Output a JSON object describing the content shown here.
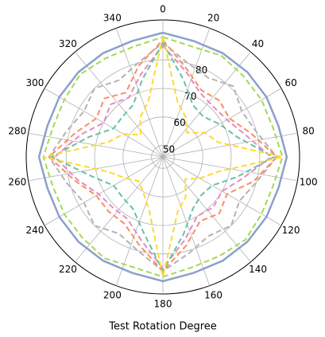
{
  "chart_data": {
    "type": "polar-line",
    "xlabel": "Test Rotation Degree",
    "x": [
      0,
      15,
      30,
      45,
      60,
      75,
      90,
      105,
      120,
      135,
      150,
      165,
      180,
      195,
      210,
      225,
      240,
      255,
      270,
      285,
      300,
      315,
      330,
      345
    ],
    "xlim": [
      0,
      360
    ],
    "xticks": [
      0,
      20,
      40,
      60,
      80,
      100,
      120,
      140,
      160,
      180,
      200,
      220,
      240,
      260,
      280,
      300,
      320,
      340
    ],
    "ylim": [
      46,
      94
    ],
    "yticks": [
      50,
      60,
      70,
      80
    ],
    "grid": true,
    "series": [
      {
        "color": "#8da0cb",
        "dash": "solid",
        "values": [
          89.5,
          88,
          88,
          88,
          88,
          88,
          89.5,
          88,
          88,
          88,
          88,
          88,
          89.5,
          88,
          88,
          88,
          88,
          88,
          89.5,
          88,
          88,
          88,
          88,
          88
        ]
      },
      {
        "color": "#a6d854",
        "dash": "dashed",
        "values": [
          88,
          86,
          87,
          86,
          86,
          86,
          88,
          86,
          86,
          87,
          86,
          86,
          88,
          86,
          87,
          86,
          86,
          86,
          88,
          86,
          86,
          87,
          86,
          86
        ]
      },
      {
        "color": "#b3b3b3",
        "dash": "dashed",
        "values": [
          86,
          80,
          78,
          81,
          78,
          80,
          86,
          80,
          77,
          80,
          78,
          81,
          86,
          80,
          77,
          80,
          78,
          81,
          86,
          81,
          78,
          80,
          77,
          80
        ]
      },
      {
        "color": "#fc8d62",
        "dash": "dashed",
        "values": [
          87,
          78,
          73,
          74,
          73,
          78,
          86,
          79,
          72,
          74,
          72,
          78,
          86,
          78,
          73,
          73,
          73,
          78,
          86,
          78,
          73,
          75,
          72,
          79
        ]
      },
      {
        "color": "#e78ac3",
        "dash": "dashed",
        "values": [
          85,
          77,
          72,
          71,
          72,
          76,
          84,
          75,
          70,
          71,
          70,
          76,
          85,
          76,
          71,
          71,
          72,
          77,
          84,
          76,
          70,
          72,
          70,
          76
        ]
      },
      {
        "color": "#66c2a5",
        "dash": "dashed",
        "values": [
          86,
          74,
          67,
          66,
          69,
          73,
          85,
          73,
          66,
          65,
          67,
          74,
          86,
          73,
          67,
          66,
          66,
          72,
          85,
          73,
          66,
          66,
          67,
          74
        ]
      },
      {
        "color": "#ffd92f",
        "dash": "dashed",
        "values": [
          88,
          66,
          62,
          58,
          63,
          66,
          88,
          66,
          61,
          57,
          62,
          66,
          88,
          65,
          60,
          58,
          61,
          66,
          88,
          66,
          62,
          57,
          62,
          66
        ]
      }
    ]
  }
}
